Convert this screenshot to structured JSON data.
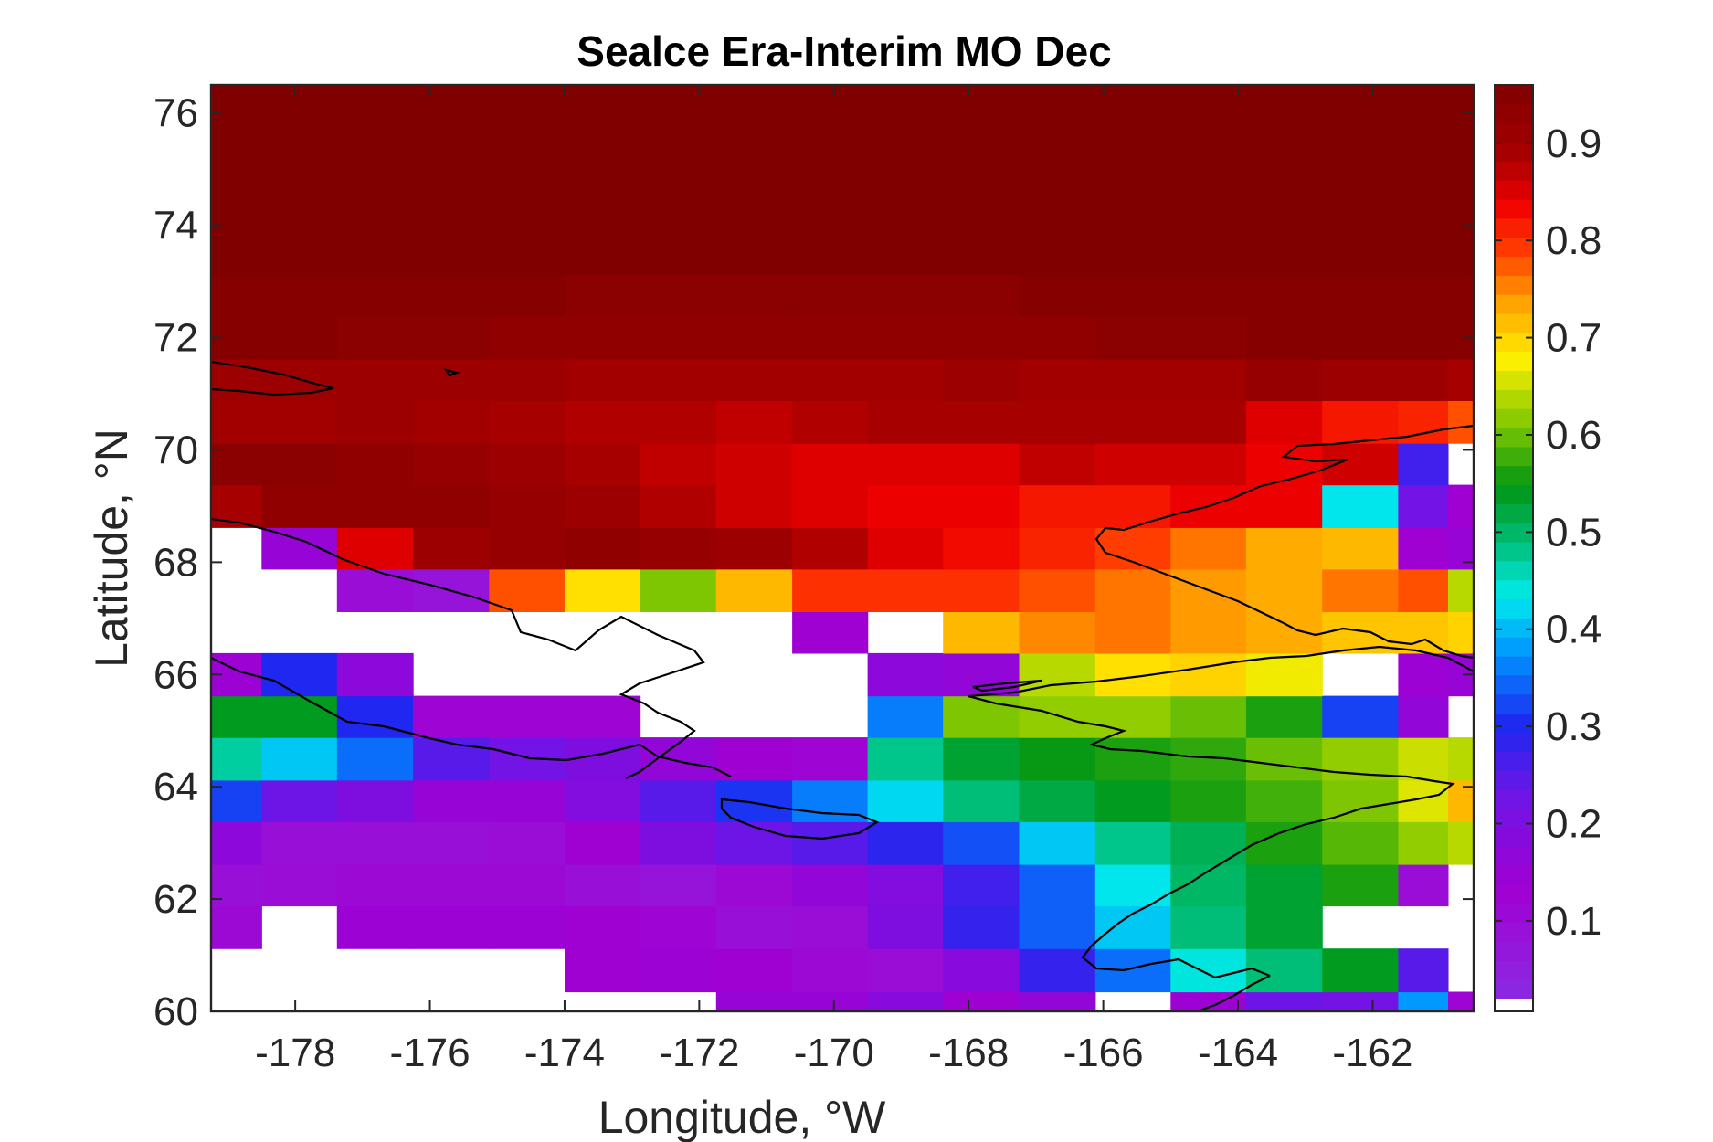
{
  "chart_data": {
    "type": "heatmap",
    "title": "Sealce Era-Interim MO Dec",
    "xlabel": "Longitude, °W",
    "ylabel": "Latitude, °N",
    "xlim": [
      -179.25,
      -160.5
    ],
    "ylim": [
      60,
      76.5
    ],
    "xticks": [
      -178,
      -176,
      -174,
      -172,
      -170,
      -168,
      -166,
      -164,
      -162
    ],
    "yticks": [
      60,
      62,
      64,
      66,
      68,
      70,
      72,
      74,
      76
    ],
    "colorbar": {
      "range": [
        0.02,
        0.96
      ],
      "ticks": [
        0.1,
        0.2,
        0.3,
        0.4,
        0.5,
        0.6,
        0.7,
        0.8,
        0.9
      ],
      "colormap": "rainbow",
      "nan_color": "#ffffff"
    },
    "grid": {
      "lon_edges": [
        -179.25,
        -178.5,
        -177.38,
        -176.25,
        -175.12,
        -174.0,
        -172.88,
        -171.75,
        -170.62,
        -169.5,
        -168.38,
        -167.25,
        -166.12,
        -165.0,
        -163.88,
        -162.75,
        -161.62,
        -160.88,
        -160.5
      ],
      "lat_edges": [
        60.0,
        60.35,
        61.12,
        61.88,
        62.62,
        63.38,
        64.12,
        64.88,
        65.62,
        66.38,
        67.12,
        67.88,
        68.62,
        69.38,
        70.12,
        70.88,
        71.62,
        72.38,
        73.12,
        76.5
      ],
      "rows_from_bottom": [
        [
          null,
          null,
          null,
          null,
          null,
          null,
          null,
          0.15,
          0.15,
          0.18,
          0.13,
          0.16,
          null,
          0.14,
          0.23,
          0.22,
          0.38,
          0.12
        ],
        [
          null,
          null,
          null,
          null,
          null,
          0.13,
          0.14,
          0.13,
          0.11,
          0.1,
          0.18,
          0.28,
          0.35,
          0.44,
          0.49,
          0.54,
          0.25,
          null
        ],
        [
          0.11,
          null,
          0.14,
          0.14,
          0.14,
          0.13,
          0.12,
          0.09,
          0.1,
          0.2,
          0.28,
          0.34,
          0.41,
          0.49,
          0.53,
          null,
          null,
          null
        ],
        [
          0.09,
          0.1,
          0.11,
          0.11,
          0.11,
          0.09,
          0.08,
          0.11,
          0.16,
          0.19,
          0.27,
          0.34,
          0.43,
          0.5,
          0.53,
          0.56,
          0.1,
          null
        ],
        [
          0.17,
          0.09,
          0.09,
          0.09,
          0.1,
          0.13,
          0.2,
          0.23,
          0.25,
          0.29,
          0.33,
          0.41,
          0.48,
          0.51,
          0.56,
          0.59,
          0.62,
          0.64
        ],
        [
          0.32,
          0.23,
          0.2,
          0.15,
          0.15,
          0.19,
          0.25,
          0.31,
          0.36,
          0.42,
          0.49,
          0.52,
          0.54,
          0.56,
          0.58,
          0.61,
          0.66,
          0.72
        ],
        [
          0.47,
          0.41,
          0.35,
          0.25,
          0.22,
          0.2,
          0.16,
          0.13,
          0.12,
          0.48,
          0.53,
          0.55,
          0.56,
          0.57,
          0.6,
          0.62,
          0.65,
          0.64
        ],
        [
          0.54,
          0.54,
          0.3,
          0.12,
          0.12,
          0.12,
          null,
          null,
          null,
          0.36,
          0.61,
          0.62,
          0.62,
          0.6,
          0.56,
          0.32,
          0.16,
          null
        ],
        [
          0.14,
          0.3,
          0.17,
          null,
          null,
          null,
          null,
          null,
          null,
          0.17,
          0.16,
          0.64,
          0.69,
          0.7,
          0.67,
          null,
          0.14,
          0.15
        ],
        [
          null,
          null,
          null,
          null,
          null,
          null,
          null,
          null,
          0.13,
          null,
          0.72,
          0.75,
          0.76,
          0.74,
          0.73,
          0.71,
          0.71,
          0.7
        ],
        [
          null,
          null,
          0.1,
          0.08,
          0.78,
          0.69,
          0.61,
          0.72,
          0.8,
          0.8,
          0.8,
          0.78,
          0.76,
          0.74,
          0.73,
          0.76,
          0.78,
          0.64
        ],
        [
          null,
          0.15,
          0.85,
          0.91,
          0.92,
          0.93,
          0.92,
          0.91,
          0.88,
          0.85,
          0.83,
          0.81,
          0.79,
          0.76,
          0.73,
          0.72,
          0.13,
          0.15
        ],
        [
          0.89,
          0.93,
          0.93,
          0.93,
          0.92,
          0.91,
          0.88,
          0.86,
          0.85,
          0.84,
          0.84,
          0.82,
          0.82,
          0.84,
          0.84,
          0.43,
          0.22,
          0.13
        ],
        [
          0.94,
          0.94,
          0.93,
          0.92,
          0.91,
          0.89,
          0.87,
          0.86,
          0.85,
          0.85,
          0.85,
          0.87,
          0.86,
          0.86,
          0.84,
          0.86,
          0.27,
          null
        ],
        [
          0.9,
          0.9,
          0.91,
          0.9,
          0.89,
          0.88,
          0.88,
          0.87,
          0.88,
          0.89,
          0.89,
          0.89,
          0.89,
          0.89,
          0.85,
          0.82,
          0.81,
          0.78
        ],
        [
          0.91,
          0.91,
          0.91,
          0.91,
          0.91,
          0.9,
          0.9,
          0.9,
          0.9,
          0.9,
          0.91,
          0.9,
          0.9,
          0.9,
          0.92,
          0.91,
          0.91,
          0.89
        ],
        [
          0.95,
          0.95,
          0.94,
          0.94,
          0.93,
          0.93,
          0.93,
          0.93,
          0.93,
          0.93,
          0.93,
          0.93,
          0.94,
          0.94,
          0.95,
          0.95,
          0.95,
          0.95
        ],
        [
          0.95,
          0.95,
          0.95,
          0.95,
          0.95,
          0.94,
          0.94,
          0.94,
          0.94,
          0.94,
          0.94,
          0.95,
          0.95,
          0.95,
          0.95,
          0.95,
          0.95,
          0.95
        ],
        [
          0.96,
          0.96,
          0.96,
          0.96,
          0.96,
          0.96,
          0.96,
          0.96,
          0.96,
          0.96,
          0.96,
          0.96,
          0.96,
          0.96,
          0.96,
          0.96,
          0.96,
          0.96
        ]
      ]
    }
  }
}
